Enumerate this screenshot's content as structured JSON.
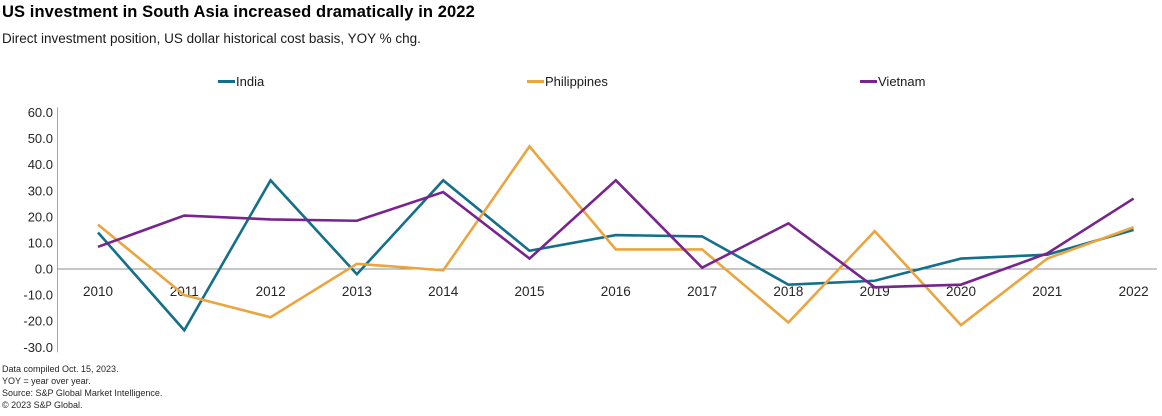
{
  "header": {
    "title": "US investment in South Asia increased dramatically in 2022",
    "subtitle": "Direct investment position, US dollar historical cost basis, YOY % chg."
  },
  "chart_data": {
    "type": "line",
    "categories": [
      "2010",
      "2011",
      "2012",
      "2013",
      "2014",
      "2015",
      "2016",
      "2017",
      "2018",
      "2019",
      "2020",
      "2021",
      "2022"
    ],
    "series": [
      {
        "name": "India",
        "color": "#136f8a",
        "values": [
          14,
          -23.5,
          34,
          -2,
          34,
          7,
          13,
          12.5,
          -6,
          -4.5,
          4,
          5.5,
          15
        ]
      },
      {
        "name": "Philippines",
        "color": "#eba53f",
        "values": [
          17,
          -10,
          -18.5,
          2,
          -0.5,
          47,
          7.5,
          7.5,
          -20.5,
          14.5,
          -21.5,
          4,
          16
        ]
      },
      {
        "name": "Vietnam",
        "color": "#77248f",
        "values": [
          8.5,
          20.5,
          19,
          18.5,
          29.5,
          4,
          34,
          0.5,
          17.5,
          -7,
          -6,
          6,
          27
        ]
      }
    ],
    "title": "US investment in South Asia increased dramatically in 2022",
    "xlabel": "",
    "ylabel": "",
    "ylim": [
      -30,
      60
    ],
    "ytick_step": 10,
    "ytick_decimals": 1,
    "grid": "zero-line-only",
    "legend_position": "top"
  },
  "colors": {
    "axis_line": "#a6a6a6",
    "zero_line": "#8c8c8c",
    "tick_text": "#262626"
  },
  "footnotes": {
    "line1": "Data compiled Oct. 15, 2023.",
    "line2": "YOY = year over year.",
    "line3": "Source: S&P Global Market Intelligence.",
    "line4": "© 2023 S&P Global."
  }
}
